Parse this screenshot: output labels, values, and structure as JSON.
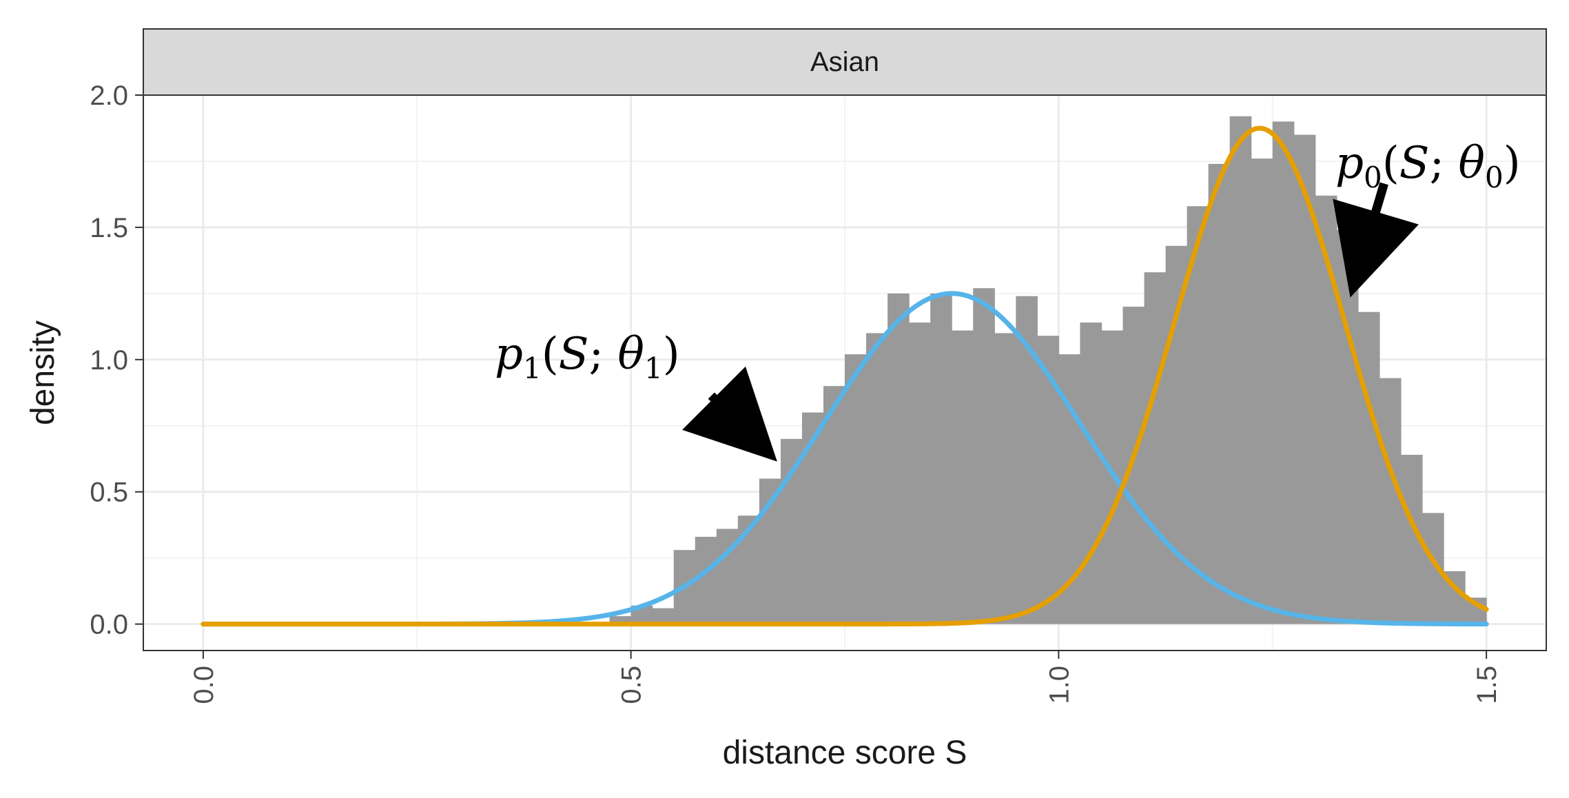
{
  "chart_data": {
    "type": "bar",
    "facet_label": "Asian",
    "xlabel": "distance score S",
    "ylabel": "density",
    "xlim": [
      -0.07,
      1.57
    ],
    "ylim": [
      -0.1,
      2.0
    ],
    "x_ticks": [
      "0.0",
      "0.5",
      "1.0",
      "1.5"
    ],
    "y_ticks": [
      "0.0",
      "0.5",
      "1.0",
      "1.5",
      "2.0"
    ],
    "x_tick_values": [
      0.0,
      0.5,
      1.0,
      1.5
    ],
    "y_tick_values": [
      0.0,
      0.5,
      1.0,
      1.5,
      2.0
    ],
    "grid": true,
    "histogram": {
      "bin_start": 0.475,
      "bin_width": 0.025,
      "values": [
        0.03,
        0.07,
        0.06,
        0.28,
        0.33,
        0.36,
        0.41,
        0.55,
        0.7,
        0.8,
        0.9,
        1.02,
        1.1,
        1.25,
        1.14,
        1.25,
        1.11,
        1.27,
        1.1,
        1.24,
        1.09,
        1.02,
        1.14,
        1.11,
        1.2,
        1.33,
        1.43,
        1.58,
        1.74,
        1.92,
        1.76,
        1.9,
        1.85,
        1.62,
        1.49,
        1.18,
        0.93,
        0.64,
        0.42,
        0.2,
        0.1
      ],
      "color": "#999999"
    },
    "series": [
      {
        "name": "p1(S;θ1)",
        "distribution": "normal",
        "mean": 0.875,
        "sd": 0.15,
        "weight": 0.47,
        "x_range": [
          0.0,
          1.5
        ],
        "color": "#56B4E9"
      },
      {
        "name": "p0(S;θ0)",
        "distribution": "normal",
        "mean": 1.235,
        "sd": 0.1,
        "weight": 0.47,
        "x_range": [
          0.0,
          1.5
        ],
        "color": "#E69F00"
      }
    ],
    "annotations": [
      {
        "label": "p1",
        "sub": "1",
        "arrow_to_x": 0.66,
        "arrow_to_y": 0.65
      },
      {
        "label": "p0",
        "sub": "0",
        "arrow_to_x": 1.345,
        "arrow_to_y": 1.28
      }
    ]
  }
}
